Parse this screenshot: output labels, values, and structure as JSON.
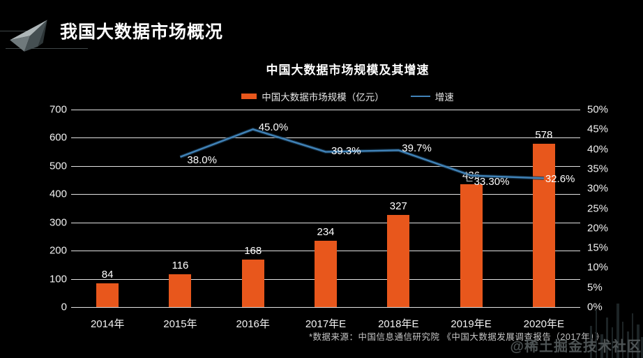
{
  "header": {
    "title": "我国大数据市场概况"
  },
  "chart": {
    "title": "中国大数据市场规模及其增速",
    "legend": [
      {
        "label": "中国大数据市场规模（亿元）",
        "type": "bar"
      },
      {
        "label": "增速",
        "type": "line"
      }
    ]
  },
  "chart_data": {
    "type": "bar+line combo",
    "title": "中国大数据市场规模及其增速",
    "categories": [
      "2014年",
      "2015年",
      "2016年",
      "2017年E",
      "2018年E",
      "2019年E",
      "2020年E"
    ],
    "series": [
      {
        "name": "中国大数据市场规模（亿元）",
        "type": "bar",
        "axis": "left",
        "values": [
          84,
          116,
          168,
          234,
          327,
          436,
          578
        ],
        "labels": [
          "84",
          "116",
          "168",
          "234",
          "327",
          "436",
          "578"
        ],
        "color": "#e8571c"
      },
      {
        "name": "增速",
        "type": "line",
        "axis": "right",
        "values": [
          null,
          38.0,
          45.0,
          39.3,
          39.7,
          33.3,
          32.6
        ],
        "labels": [
          null,
          "38.0%",
          "45.0%",
          "39.3%",
          "39.7%",
          "33.30%",
          "32.6%"
        ],
        "color": "#4183b8"
      }
    ],
    "left_axis": {
      "min": 0,
      "max": 700,
      "ticks": [
        0,
        100,
        200,
        300,
        400,
        500,
        600,
        700
      ]
    },
    "right_axis": {
      "min": 0,
      "max": 50,
      "tick_labels": [
        "0%",
        "5%",
        "10%",
        "15%",
        "20%",
        "25%",
        "30%",
        "35%",
        "40%",
        "45%",
        "50%"
      ]
    },
    "grid": true,
    "legend_position": "top"
  },
  "footnote": "*数据来源：中国信息通信研究院 《中国大数据发展调查报告（2017年）》",
  "watermark": "@稀土掘金技术社区",
  "colors": {
    "background": "#000000",
    "bar": "#e8571c",
    "line": "#4183b8",
    "line_glow": "#16344d",
    "grid": "#e3e3e3",
    "text": "#ffffff",
    "footnote": "#c6c6c6",
    "watermark": "#565c5e"
  }
}
